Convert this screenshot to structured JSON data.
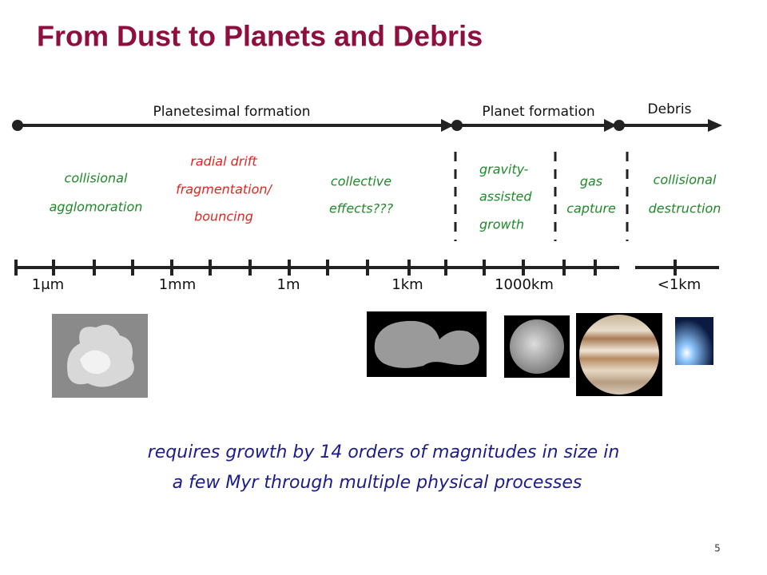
{
  "header": {
    "title": "From Dust to Planets and Debris"
  },
  "phases": [
    "Planetesimal formation",
    "Planet formation",
    "Debris"
  ],
  "processes": [
    {
      "lines": [
        "collisional",
        "agglomoration"
      ]
    },
    {
      "lines": [
        "radial drift",
        "fragmentation/",
        "bouncing"
      ]
    },
    {
      "lines": [
        "collective",
        "effects???"
      ]
    },
    {
      "lines": [
        "gravity-",
        "assisted",
        "growth"
      ]
    },
    {
      "lines": [
        "gas",
        "capture"
      ]
    },
    {
      "lines": [
        "collisional",
        "destruction"
      ]
    }
  ],
  "scale_labels": [
    "1μm",
    "1mm",
    "1m",
    "1km",
    "1000km",
    "<1km"
  ],
  "summary": [
    "requires growth by 14 orders of magnitudes in size in",
    "a few Myr through multiple physical processes"
  ],
  "page_number": "5"
}
